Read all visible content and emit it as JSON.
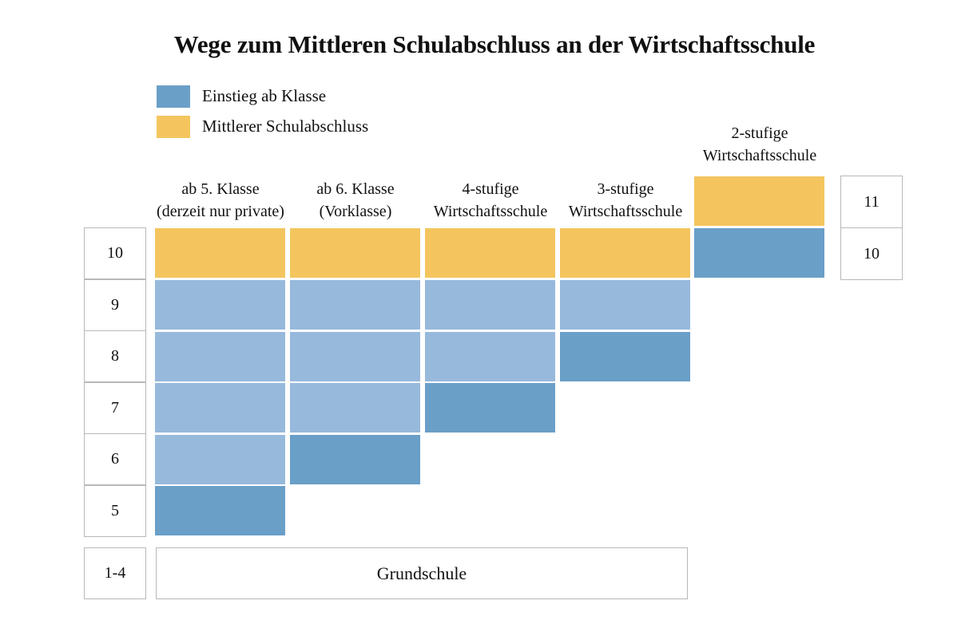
{
  "title": "Wege zum Mittleren Schulabschluss an der Wirtschaftsschule",
  "colors": {
    "entry": "#6a9fc8",
    "regular": "#97b9dc",
    "graduation": "#f4c55e"
  },
  "legend": [
    {
      "label": "Einstieg ab Klasse",
      "kind": "entry"
    },
    {
      "label": "Mittlerer Schulabschluss",
      "kind": "graduation"
    }
  ],
  "grades_left": [
    "10",
    "9",
    "8",
    "7",
    "6",
    "5"
  ],
  "grundschule": {
    "grade": "1-4",
    "label": "Grundschule"
  },
  "grades_right": [
    "11",
    "10"
  ],
  "columns": [
    {
      "heading": [
        "ab 5. Klasse",
        "(derzeit nur private)"
      ],
      "cells": [
        "graduation",
        "regular",
        "regular",
        "regular",
        "regular",
        "entry"
      ]
    },
    {
      "heading": [
        "ab 6. Klasse",
        "(Vorklasse)"
      ],
      "cells": [
        "graduation",
        "regular",
        "regular",
        "regular",
        "entry"
      ]
    },
    {
      "heading": [
        "4-stufige",
        "Wirtschaftsschule"
      ],
      "cells": [
        "graduation",
        "regular",
        "regular",
        "entry"
      ]
    },
    {
      "heading": [
        "3-stufige",
        "Wirtschaftsschule"
      ],
      "cells": [
        "graduation",
        "regular",
        "entry"
      ]
    },
    {
      "heading": [
        "2-stufige",
        "Wirtschaftsschule"
      ],
      "cells": [
        "graduation",
        "entry"
      ]
    }
  ]
}
